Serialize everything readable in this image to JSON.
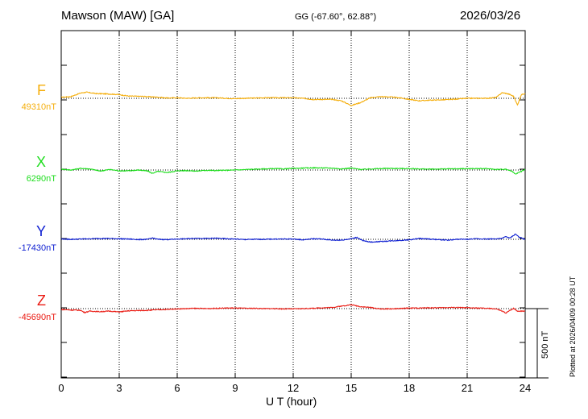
{
  "header": {
    "station": "Mawson (MAW)  [GA]",
    "coords": "GG (-67.60°,  62.88°)",
    "date": "2026/03/26"
  },
  "plotted_note": "Plotted at 2026/04/09 00:28 UT",
  "chart_data": {
    "type": "line",
    "title": "Mawson (MAW)  [GA]",
    "xlabel": "U T (hour)",
    "xlim": [
      0,
      24
    ],
    "x_ticks": [
      0,
      3,
      6,
      9,
      12,
      15,
      18,
      21,
      24
    ],
    "grid": true,
    "scale_bar": {
      "label": "500 nT",
      "value_nT": 500
    },
    "nT_per_division": 250,
    "series": [
      {
        "name": "F",
        "baseline_label": "49310nT",
        "baseline_nT": 49310,
        "color": "#f5ae0b",
        "hours": [
          0,
          0.5,
          1,
          1.3,
          1.8,
          2.3,
          2.9,
          3.5,
          4.2,
          5,
          5.5,
          6,
          6.5,
          7.2,
          8,
          8.5,
          9,
          9.5,
          10.5,
          11.5,
          12,
          12.5,
          13,
          14,
          14.5,
          15,
          15.5,
          16,
          16.5,
          17,
          17.5,
          18,
          18.5,
          19,
          20,
          21,
          21.5,
          22,
          22.5,
          22.8,
          23,
          23.2,
          23.4,
          23.6,
          23.8,
          24
        ],
        "values": [
          8,
          12,
          38,
          44,
          34,
          32,
          28,
          16,
          14,
          8,
          2,
          4,
          0,
          4,
          4,
          0,
          -2,
          0,
          4,
          4,
          4,
          0,
          -8,
          -8,
          -18,
          -52,
          -30,
          4,
          12,
          10,
          4,
          -8,
          -18,
          -14,
          -10,
          0,
          0,
          0,
          6,
          40,
          36,
          28,
          14,
          -48,
          26,
          36
        ]
      },
      {
        "name": "X",
        "baseline_label": "6290nT",
        "baseline_nT": 6290,
        "color": "#1ddd1d",
        "hours": [
          0,
          0.5,
          1,
          1.5,
          2,
          2.5,
          3,
          3.5,
          4,
          4.5,
          4.7,
          5,
          5.5,
          6,
          6.5,
          7,
          7.5,
          8,
          9,
          10,
          11,
          11.5,
          12,
          13,
          14,
          14.5,
          15,
          15.5,
          16,
          17,
          18,
          19,
          20,
          21,
          22,
          22.5,
          23,
          23.3,
          23.5,
          23.8,
          24
        ],
        "values": [
          6,
          0,
          12,
          8,
          -8,
          4,
          -6,
          -6,
          0,
          -8,
          -24,
          -10,
          -18,
          -6,
          -4,
          -8,
          -2,
          -4,
          0,
          6,
          10,
          8,
          12,
          16,
          14,
          8,
          14,
          4,
          8,
          12,
          10,
          6,
          8,
          10,
          10,
          4,
          6,
          -8,
          -28,
          -10,
          6
        ]
      },
      {
        "name": "Y",
        "baseline_label": "-17430nT",
        "baseline_nT": -17430,
        "color": "#0d1ed1",
        "hours": [
          0,
          0.5,
          1,
          1.5,
          2,
          2.5,
          3,
          3.5,
          4,
          4.5,
          4.7,
          5,
          5.5,
          6,
          6.5,
          7,
          7.5,
          8,
          8.5,
          9,
          9.5,
          10,
          10.5,
          11,
          12,
          12.5,
          13,
          13.5,
          14,
          14.5,
          15,
          15.3,
          15.6,
          16,
          16.5,
          17,
          17.5,
          18,
          18.5,
          19,
          19.5,
          20,
          20.5,
          21,
          21.5,
          22,
          22.5,
          22.8,
          23,
          23.2,
          23.5,
          23.7,
          24
        ],
        "values": [
          2,
          0,
          2,
          4,
          6,
          6,
          4,
          2,
          -2,
          0,
          10,
          0,
          -2,
          2,
          4,
          8,
          6,
          8,
          4,
          2,
          -2,
          0,
          0,
          2,
          2,
          -4,
          4,
          2,
          -6,
          -6,
          4,
          14,
          -10,
          -20,
          -16,
          -12,
          -8,
          -4,
          6,
          2,
          -2,
          -6,
          0,
          0,
          4,
          2,
          4,
          6,
          20,
          8,
          38,
          14,
          0
        ]
      },
      {
        "name": "Z",
        "baseline_label": "-45690nT",
        "baseline_nT": -45690,
        "color": "#ea1a12",
        "hours": [
          0,
          0.5,
          1,
          1.2,
          1.5,
          2,
          2.5,
          3,
          3.5,
          4,
          4.5,
          5,
          5.5,
          6,
          6.5,
          7,
          7.5,
          8,
          8.5,
          9,
          9.5,
          10,
          10.5,
          11,
          11.5,
          12,
          12.5,
          13,
          13.5,
          14,
          14.5,
          15,
          15.5,
          16,
          16.5,
          17,
          17.5,
          18,
          18.5,
          19,
          19.5,
          20,
          20.5,
          21,
          21.5,
          22,
          22.5,
          22.8,
          23,
          23.2,
          23.4,
          23.6,
          24
        ],
        "values": [
          -6,
          -10,
          -12,
          -28,
          -18,
          -22,
          -18,
          -24,
          -16,
          -14,
          -12,
          -8,
          -6,
          -2,
          0,
          2,
          0,
          2,
          4,
          4,
          2,
          2,
          0,
          0,
          -2,
          -2,
          0,
          2,
          6,
          8,
          18,
          28,
          14,
          8,
          -2,
          -2,
          0,
          4,
          4,
          6,
          6,
          8,
          8,
          6,
          4,
          2,
          -2,
          -18,
          -32,
          -14,
          2,
          -18,
          -18
        ]
      }
    ]
  }
}
